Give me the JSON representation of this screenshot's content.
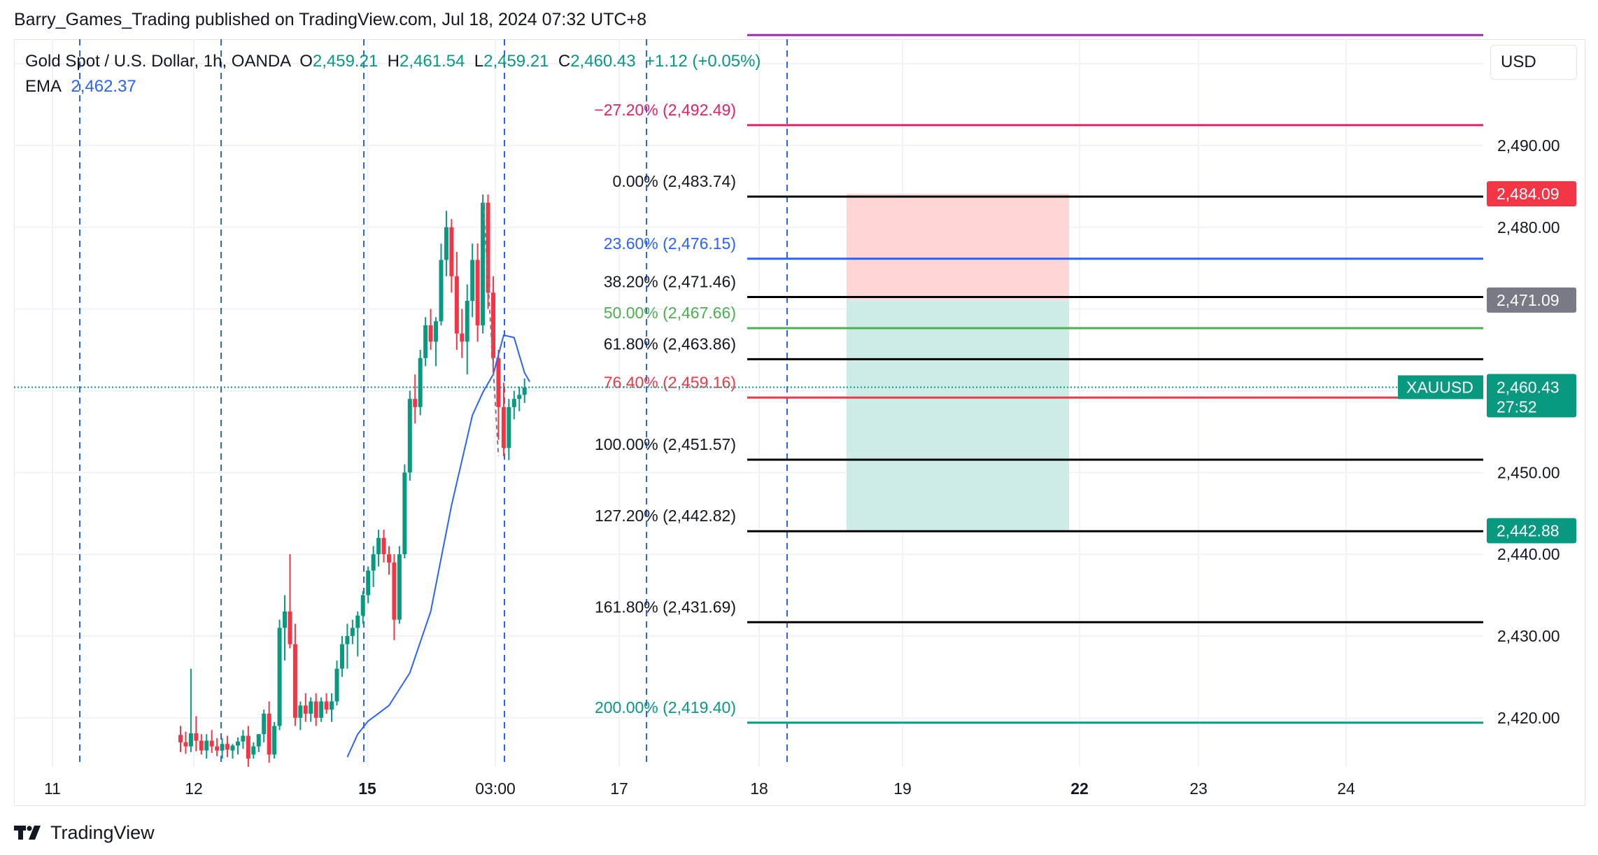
{
  "publisher_line": "Barry_Games_Trading published on TradingView.com, Jul 18, 2024 07:32 UTC+8",
  "legend": {
    "symbol": "Gold Spot / U.S. Dollar, 1h, OANDA",
    "open_label": "O",
    "open": "2,459.21",
    "high_label": "H",
    "high": "2,461.54",
    "low_label": "L",
    "low": "2,459.21",
    "close_label": "C",
    "close": "2,460.43",
    "change": "+1.12 (+0.05%)",
    "ema_label": "EMA",
    "ema_value": "2,462.37"
  },
  "currency_button": "USD",
  "footer_brand": "TradingView",
  "colors": {
    "bull": "#089981",
    "bear": "#f23645",
    "ema": "#2962ff",
    "fib_black": "#000000",
    "fib_blue": "#2962ff",
    "fib_green": "#4caf50",
    "fib_red": "#f23645",
    "fib_pink": "#e91e63",
    "fib_purple": "#9c27b0",
    "fib_teal": "#089981",
    "stop_zone": "#ffd6d6",
    "target_zone": "#cdece8",
    "axis_text": "#131722"
  },
  "chart_data": {
    "type": "candlestick",
    "ylim": [
      2414,
      2503
    ],
    "y_ticks": [
      "2,420.00",
      "2,430.00",
      "2,440.00",
      "2,450.00",
      "2,480.00",
      "2,490.00"
    ],
    "x_ticks": [
      {
        "label": "11",
        "bold": false
      },
      {
        "label": "12",
        "bold": false
      },
      {
        "label": "15",
        "bold": true
      },
      {
        "label": "03:00",
        "bold": false
      },
      {
        "label": "17",
        "bold": false
      },
      {
        "label": "18",
        "bold": false
      },
      {
        "label": "19",
        "bold": false
      },
      {
        "label": "22",
        "bold": true
      },
      {
        "label": "23",
        "bold": false
      },
      {
        "label": "24",
        "bold": false
      }
    ],
    "fib_levels": [
      {
        "label": "−27.20% (2,492.49)",
        "value": 2492.49,
        "color": "#e91e63"
      },
      {
        "label": "0.00% (2,483.74)",
        "value": 2483.74,
        "color": "#000000"
      },
      {
        "label": "23.60% (2,476.15)",
        "value": 2476.15,
        "color": "#2962ff"
      },
      {
        "label": "38.20% (2,471.46)",
        "value": 2471.46,
        "color": "#000000"
      },
      {
        "label": "50.00% (2,467.66)",
        "value": 2467.66,
        "color": "#4caf50"
      },
      {
        "label": "61.80% (2,463.86)",
        "value": 2463.86,
        "color": "#000000"
      },
      {
        "label": "76.40% (2,459.16)",
        "value": 2459.16,
        "color": "#f23645"
      },
      {
        "label": "100.00% (2,451.57)",
        "value": 2451.57,
        "color": "#000000"
      },
      {
        "label": "127.20% (2,442.82)",
        "value": 2442.82,
        "color": "#000000"
      },
      {
        "label": "161.80% (2,431.69)",
        "value": 2431.69,
        "color": "#000000"
      },
      {
        "label": "200.00% (2,419.40)",
        "value": 2419.4,
        "color": "#089981"
      },
      {
        "label": "",
        "value": 2503.5,
        "color": "#9c27b0"
      }
    ],
    "price_tags": [
      {
        "label": "2,484.09",
        "value": 2484.09,
        "color": "#f23645"
      },
      {
        "label": "2,471.09",
        "value": 2471.09,
        "color": "#787b86"
      },
      {
        "label": "2,442.88",
        "value": 2442.88,
        "color": "#089981"
      }
    ],
    "last_price": {
      "symbol": "XAUUSD",
      "label": "2,460.43",
      "value": 2460.43,
      "countdown": "27:52",
      "color": "#089981"
    },
    "position": {
      "entry": 2471.09,
      "stop": 2484.09,
      "target": 2442.88
    },
    "candles": [
      [
        2417.9,
        2419.0,
        2415.8,
        2417.0
      ],
      [
        2417.0,
        2418.3,
        2415.6,
        2416.5
      ],
      [
        2416.5,
        2426.0,
        2415.8,
        2418.1
      ],
      [
        2418.1,
        2420.2,
        2415.9,
        2417.2
      ],
      [
        2417.2,
        2418.0,
        2415.5,
        2416.0
      ],
      [
        2416.0,
        2418.0,
        2415.0,
        2417.2
      ],
      [
        2417.2,
        2418.5,
        2415.7,
        2416.5
      ],
      [
        2416.5,
        2417.5,
        2415.3,
        2416.0
      ],
      [
        2416.0,
        2417.5,
        2415.0,
        2416.8
      ],
      [
        2416.8,
        2417.8,
        2415.2,
        2416.1
      ],
      [
        2416.0,
        2416.8,
        2415.0,
        2416.6
      ],
      [
        2416.6,
        2417.6,
        2415.5,
        2417.1
      ],
      [
        2417.1,
        2418.5,
        2416.2,
        2417.8
      ],
      [
        2417.8,
        2419.0,
        2414.0,
        2415.0
      ],
      [
        2415.5,
        2417.0,
        2415.0,
        2416.5
      ],
      [
        2416.5,
        2418.0,
        2415.8,
        2418.0
      ],
      [
        2418.0,
        2421.0,
        2417.0,
        2420.5
      ],
      [
        2420.5,
        2422.0,
        2414.5,
        2415.5
      ],
      [
        2415.5,
        2419.5,
        2415.0,
        2419.0
      ],
      [
        2419.0,
        2432.0,
        2418.5,
        2431.0
      ],
      [
        2431.0,
        2435.0,
        2427.0,
        2433.0
      ],
      [
        2433.0,
        2440.0,
        2428.5,
        2429.0
      ],
      [
        2429.0,
        2431.5,
        2419.0,
        2420.0
      ],
      [
        2420.0,
        2422.0,
        2418.5,
        2421.5
      ],
      [
        2421.5,
        2423.0,
        2419.5,
        2420.5
      ],
      [
        2420.5,
        2422.5,
        2419.5,
        2422.0
      ],
      [
        2422.0,
        2423.0,
        2419.0,
        2420.0
      ],
      [
        2420.0,
        2422.5,
        2419.5,
        2422.0
      ],
      [
        2422.0,
        2423.0,
        2420.5,
        2421.0
      ],
      [
        2421.0,
        2423.0,
        2419.5,
        2422.0
      ],
      [
        2422.0,
        2427.0,
        2421.5,
        2426.0
      ],
      [
        2426.0,
        2430.0,
        2425.0,
        2429.0
      ],
      [
        2429.0,
        2431.5,
        2426.0,
        2430.0
      ],
      [
        2430.0,
        2432.0,
        2429.0,
        2431.0
      ],
      [
        2431.0,
        2433.0,
        2427.5,
        2432.5
      ],
      [
        2432.5,
        2435.5,
        2431.5,
        2435.0
      ],
      [
        2435.0,
        2438.5,
        2434.0,
        2438.0
      ],
      [
        2438.0,
        2441.0,
        2436.0,
        2440.0
      ],
      [
        2440.0,
        2443.0,
        2438.5,
        2442.0
      ],
      [
        2442.0,
        2443.0,
        2439.0,
        2440.0
      ],
      [
        2440.0,
        2441.0,
        2437.5,
        2439.0
      ],
      [
        2439.0,
        2440.0,
        2429.5,
        2432.0
      ],
      [
        2432.0,
        2441.0,
        2431.5,
        2440.0
      ],
      [
        2440.0,
        2451.0,
        2439.5,
        2450.0
      ],
      [
        2450.0,
        2460.0,
        2449.0,
        2459.0
      ],
      [
        2459.0,
        2462.0,
        2456.0,
        2458.0
      ],
      [
        2458.0,
        2465.0,
        2457.0,
        2464.0
      ],
      [
        2464.0,
        2469.0,
        2463.0,
        2468.0
      ],
      [
        2468.0,
        2470.0,
        2465.0,
        2466.0
      ],
      [
        2466.0,
        2469.0,
        2463.0,
        2468.5
      ],
      [
        2468.5,
        2478.0,
        2468.0,
        2476.0
      ],
      [
        2476.0,
        2482.0,
        2474.0,
        2480.0
      ],
      [
        2480.0,
        2481.0,
        2472.0,
        2474.0
      ],
      [
        2474.0,
        2477.0,
        2465.0,
        2467.0
      ],
      [
        2467.0,
        2470.0,
        2464.0,
        2466.0
      ],
      [
        2466.0,
        2473.0,
        2462.0,
        2471.0
      ],
      [
        2471.0,
        2478.0,
        2469.0,
        2476.0
      ],
      [
        2476.0,
        2478.0,
        2466.0,
        2468.0
      ],
      [
        2468.0,
        2484.0,
        2467.0,
        2483.0
      ],
      [
        2483.0,
        2484.0,
        2470.0,
        2472.0
      ],
      [
        2472.0,
        2474.0,
        2462.0,
        2464.0
      ],
      [
        2464.0,
        2465.0,
        2454.0,
        2458.0
      ],
      [
        2458.0,
        2461.0,
        2452.0,
        2453.0
      ],
      [
        2453.0,
        2459.0,
        2451.5,
        2458.0
      ],
      [
        2458.0,
        2460.0,
        2456.5,
        2459.0
      ],
      [
        2459.0,
        2460.5,
        2457.5,
        2459.5
      ],
      [
        2459.5,
        2461.5,
        2458.5,
        2460.4
      ]
    ],
    "ema": [
      [
        32,
        2415.2
      ],
      [
        34,
        2418.0
      ],
      [
        36,
        2419.6
      ],
      [
        40,
        2421.5
      ],
      [
        44,
        2425.5
      ],
      [
        48,
        2433.0
      ],
      [
        52,
        2446.0
      ],
      [
        56,
        2457.0
      ],
      [
        58,
        2459.8
      ],
      [
        60,
        2462.0
      ],
      [
        62,
        2466.8
      ],
      [
        64,
        2466.5
      ],
      [
        66,
        2462.2
      ],
      [
        67,
        2461.1
      ]
    ]
  }
}
